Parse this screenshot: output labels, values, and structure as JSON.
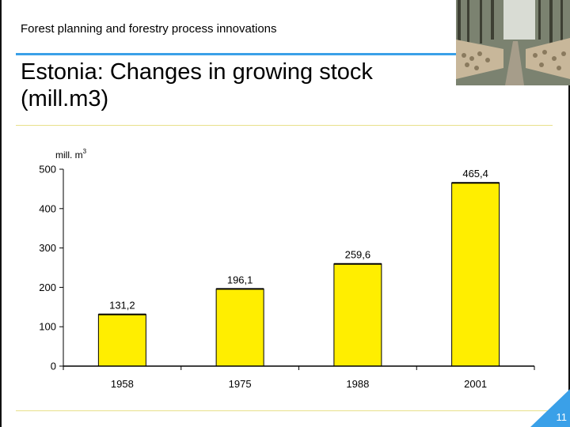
{
  "header": {
    "title": "Forest planning and forestry process innovations"
  },
  "slide": {
    "title_line1": "Estonia: Changes in growing stock",
    "title_line2": "(mill.m3)",
    "page_number": "11"
  },
  "colors": {
    "accent_rule": "#3aa0e8",
    "bar_fill": "#ffee00",
    "bar_stroke": "#000000",
    "divider": "#e8e08a",
    "corner": "#3aa0e8"
  },
  "photo": {
    "icon": "log-piles-forest-road-photo"
  },
  "chart_data": {
    "type": "bar",
    "categories": [
      "1958",
      "1975",
      "1988",
      "2001"
    ],
    "values": [
      131.2,
      196.1,
      259.6,
      465.4
    ],
    "value_labels": [
      "131,2",
      "196,1",
      "259,6",
      "465,4"
    ],
    "title": "",
    "xlabel": "",
    "ylabel": "mill. m",
    "ylabel_superscript": "3",
    "ylim": [
      0,
      500
    ],
    "yticks": [
      0,
      100,
      200,
      300,
      400,
      500
    ],
    "grid": false,
    "legend": "none"
  }
}
